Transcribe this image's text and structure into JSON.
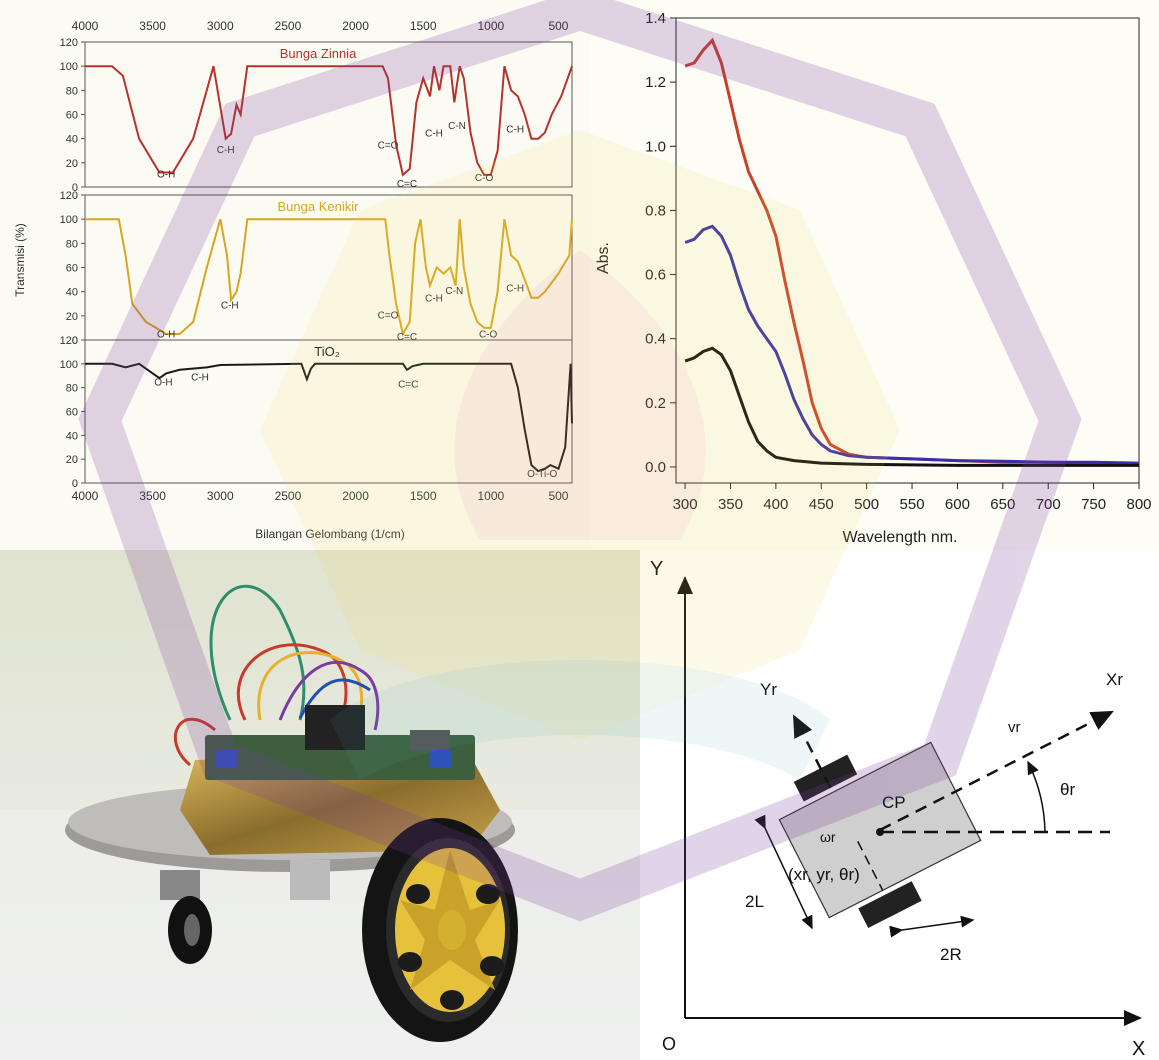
{
  "ftir": {
    "xlabel": "Bilangan Gelombang (1/cm)",
    "ylabel": "Transmisi (%)",
    "x_ticks": [
      "4000",
      "3500",
      "3000",
      "2500",
      "2000",
      "1500",
      "1000",
      "500"
    ],
    "y_ticks": [
      "0",
      "20",
      "40",
      "60",
      "80",
      "100",
      "120"
    ]
  },
  "uv": {
    "xlabel": "Wavelength nm.",
    "ylabel": "Abs.",
    "x_ticks": [
      "300",
      "350",
      "400",
      "450",
      "500",
      "550",
      "600",
      "650",
      "700",
      "750",
      "800"
    ],
    "y_ticks": [
      "0.0",
      "0.2",
      "0.4",
      "0.6",
      "0.8",
      "1.0",
      "1.2",
      "1.4"
    ]
  },
  "kinematics": {
    "axis_y": "Y",
    "axis_x": "X",
    "origin": "O",
    "robot_y": "Yr",
    "robot_x": "Xr",
    "velocity": "vr",
    "angle": "θr",
    "center_point": "CP",
    "omega": "ωr",
    "pose": "(xr, yr, θr)",
    "width_label": "2L",
    "wheel_label": "2R"
  },
  "colors": {
    "zinnia": "#b8312b",
    "kenikir": "#d9a520",
    "tio2": "#1a1a1a",
    "uv_red": "#c8402a",
    "uv_blue": "#3a2fa8",
    "uv_black": "#111111"
  },
  "chart_data": [
    {
      "type": "line",
      "panel": "ftir",
      "x_axis": "Bilangan Gelombang (1/cm)",
      "y_axis": "Transmisi (%)",
      "xlim": [
        4000,
        400
      ],
      "ylim": [
        0,
        120
      ],
      "subplots": [
        {
          "name": "Bunga Zinnia",
          "color": "#b8312b",
          "points": [
            [
              4000,
              100
            ],
            [
              3800,
              100
            ],
            [
              3720,
              92
            ],
            [
              3600,
              40
            ],
            [
              3450,
              12
            ],
            [
              3350,
              12
            ],
            [
              3200,
              40
            ],
            [
              3050,
              100
            ],
            [
              2960,
              40
            ],
            [
              2920,
              44
            ],
            [
              2880,
              68
            ],
            [
              2850,
              60
            ],
            [
              2800,
              100
            ],
            [
              1800,
              100
            ],
            [
              1760,
              90
            ],
            [
              1700,
              35
            ],
            [
              1650,
              10
            ],
            [
              1600,
              15
            ],
            [
              1550,
              70
            ],
            [
              1500,
              90
            ],
            [
              1450,
              75
            ],
            [
              1420,
              100
            ],
            [
              1380,
              80
            ],
            [
              1350,
              100
            ],
            [
              1300,
              100
            ],
            [
              1270,
              70
            ],
            [
              1230,
              100
            ],
            [
              1200,
              90
            ],
            [
              1150,
              45
            ],
            [
              1100,
              20
            ],
            [
              1050,
              10
            ],
            [
              1000,
              10
            ],
            [
              950,
              30
            ],
            [
              900,
              100
            ],
            [
              850,
              80
            ],
            [
              800,
              75
            ],
            [
              750,
              60
            ],
            [
              700,
              40
            ],
            [
              650,
              40
            ],
            [
              600,
              45
            ],
            [
              550,
              60
            ],
            [
              480,
              75
            ],
            [
              400,
              100
            ]
          ],
          "annotations": [
            "O-H",
            "C-H",
            "C=O",
            "C=C",
            "C-H",
            "C-N",
            "C-O",
            "C-H"
          ]
        },
        {
          "name": "Bunga Kenikir",
          "color": "#d9a520",
          "points": [
            [
              4000,
              100
            ],
            [
              3750,
              100
            ],
            [
              3700,
              70
            ],
            [
              3650,
              30
            ],
            [
              3550,
              15
            ],
            [
              3400,
              5
            ],
            [
              3300,
              5
            ],
            [
              3200,
              15
            ],
            [
              3100,
              60
            ],
            [
              3000,
              100
            ],
            [
              2950,
              70
            ],
            [
              2920,
              33
            ],
            [
              2880,
              40
            ],
            [
              2850,
              55
            ],
            [
              2800,
              100
            ],
            [
              1780,
              100
            ],
            [
              1750,
              70
            ],
            [
              1700,
              30
            ],
            [
              1650,
              5
            ],
            [
              1600,
              15
            ],
            [
              1560,
              80
            ],
            [
              1520,
              100
            ],
            [
              1480,
              60
            ],
            [
              1450,
              45
            ],
            [
              1400,
              60
            ],
            [
              1350,
              55
            ],
            [
              1300,
              60
            ],
            [
              1260,
              45
            ],
            [
              1230,
              100
            ],
            [
              1200,
              60
            ],
            [
              1150,
              30
            ],
            [
              1100,
              15
            ],
            [
              1050,
              10
            ],
            [
              1000,
              10
            ],
            [
              950,
              40
            ],
            [
              900,
              100
            ],
            [
              850,
              70
            ],
            [
              800,
              65
            ],
            [
              750,
              50
            ],
            [
              700,
              35
            ],
            [
              650,
              35
            ],
            [
              600,
              40
            ],
            [
              500,
              55
            ],
            [
              420,
              70
            ],
            [
              400,
              100
            ]
          ],
          "annotations": [
            "O-H",
            "C-H",
            "C=O",
            "C=C",
            "C-H",
            "C-N",
            "C-O",
            "C-H"
          ]
        },
        {
          "name": "TiO₂",
          "color": "#1a1a1a",
          "points": [
            [
              4000,
              100
            ],
            [
              3800,
              100
            ],
            [
              3700,
              97
            ],
            [
              3600,
              100
            ],
            [
              3450,
              88
            ],
            [
              3400,
              92
            ],
            [
              3300,
              95
            ],
            [
              3100,
              97
            ],
            [
              3000,
              99
            ],
            [
              2400,
              100
            ],
            [
              2360,
              87
            ],
            [
              2330,
              96
            ],
            [
              2300,
              100
            ],
            [
              1650,
              100
            ],
            [
              1620,
              95
            ],
            [
              1580,
              98
            ],
            [
              1500,
              100
            ],
            [
              850,
              100
            ],
            [
              800,
              80
            ],
            [
              750,
              45
            ],
            [
              700,
              15
            ],
            [
              650,
              10
            ],
            [
              600,
              12
            ],
            [
              560,
              15
            ],
            [
              500,
              12
            ],
            [
              450,
              30
            ],
            [
              410,
              100
            ],
            [
              400,
              50
            ]
          ],
          "annotations": [
            "O-H",
            "C-H",
            "C=C",
            "O-Ti-O"
          ]
        }
      ]
    },
    {
      "type": "line",
      "panel": "uv",
      "x_axis": "Wavelength nm.",
      "y_axis": "Abs.",
      "xlim": [
        290,
        800
      ],
      "ylim": [
        -0.05,
        1.4
      ],
      "series": [
        {
          "color": "#c8402a",
          "points": [
            [
              300,
              1.25
            ],
            [
              310,
              1.26
            ],
            [
              320,
              1.3
            ],
            [
              330,
              1.33
            ],
            [
              340,
              1.26
            ],
            [
              350,
              1.14
            ],
            [
              360,
              1.02
            ],
            [
              370,
              0.92
            ],
            [
              380,
              0.86
            ],
            [
              390,
              0.8
            ],
            [
              400,
              0.72
            ],
            [
              410,
              0.58
            ],
            [
              420,
              0.45
            ],
            [
              430,
              0.33
            ],
            [
              440,
              0.2
            ],
            [
              450,
              0.12
            ],
            [
              460,
              0.07
            ],
            [
              480,
              0.04
            ],
            [
              500,
              0.03
            ],
            [
              550,
              0.025
            ],
            [
              600,
              0.02
            ],
            [
              650,
              0.015
            ],
            [
              700,
              0.015
            ],
            [
              750,
              0.012
            ],
            [
              800,
              0.01
            ]
          ]
        },
        {
          "color": "#3a2fa8",
          "points": [
            [
              300,
              0.7
            ],
            [
              310,
              0.71
            ],
            [
              320,
              0.74
            ],
            [
              330,
              0.75
            ],
            [
              340,
              0.72
            ],
            [
              350,
              0.66
            ],
            [
              360,
              0.57
            ],
            [
              370,
              0.49
            ],
            [
              380,
              0.44
            ],
            [
              390,
              0.4
            ],
            [
              400,
              0.36
            ],
            [
              410,
              0.29
            ],
            [
              420,
              0.21
            ],
            [
              430,
              0.15
            ],
            [
              440,
              0.1
            ],
            [
              450,
              0.07
            ],
            [
              460,
              0.05
            ],
            [
              480,
              0.035
            ],
            [
              500,
              0.03
            ],
            [
              550,
              0.025
            ],
            [
              600,
              0.02
            ],
            [
              650,
              0.018
            ],
            [
              700,
              0.015
            ],
            [
              750,
              0.015
            ],
            [
              800,
              0.012
            ]
          ]
        },
        {
          "color": "#111111",
          "points": [
            [
              300,
              0.33
            ],
            [
              310,
              0.34
            ],
            [
              320,
              0.36
            ],
            [
              330,
              0.37
            ],
            [
              340,
              0.35
            ],
            [
              350,
              0.3
            ],
            [
              360,
              0.22
            ],
            [
              370,
              0.14
            ],
            [
              380,
              0.08
            ],
            [
              390,
              0.05
            ],
            [
              400,
              0.03
            ],
            [
              420,
              0.02
            ],
            [
              450,
              0.012
            ],
            [
              500,
              0.008
            ],
            [
              600,
              0.005
            ],
            [
              700,
              0.005
            ],
            [
              800,
              0.005
            ]
          ]
        }
      ]
    }
  ]
}
